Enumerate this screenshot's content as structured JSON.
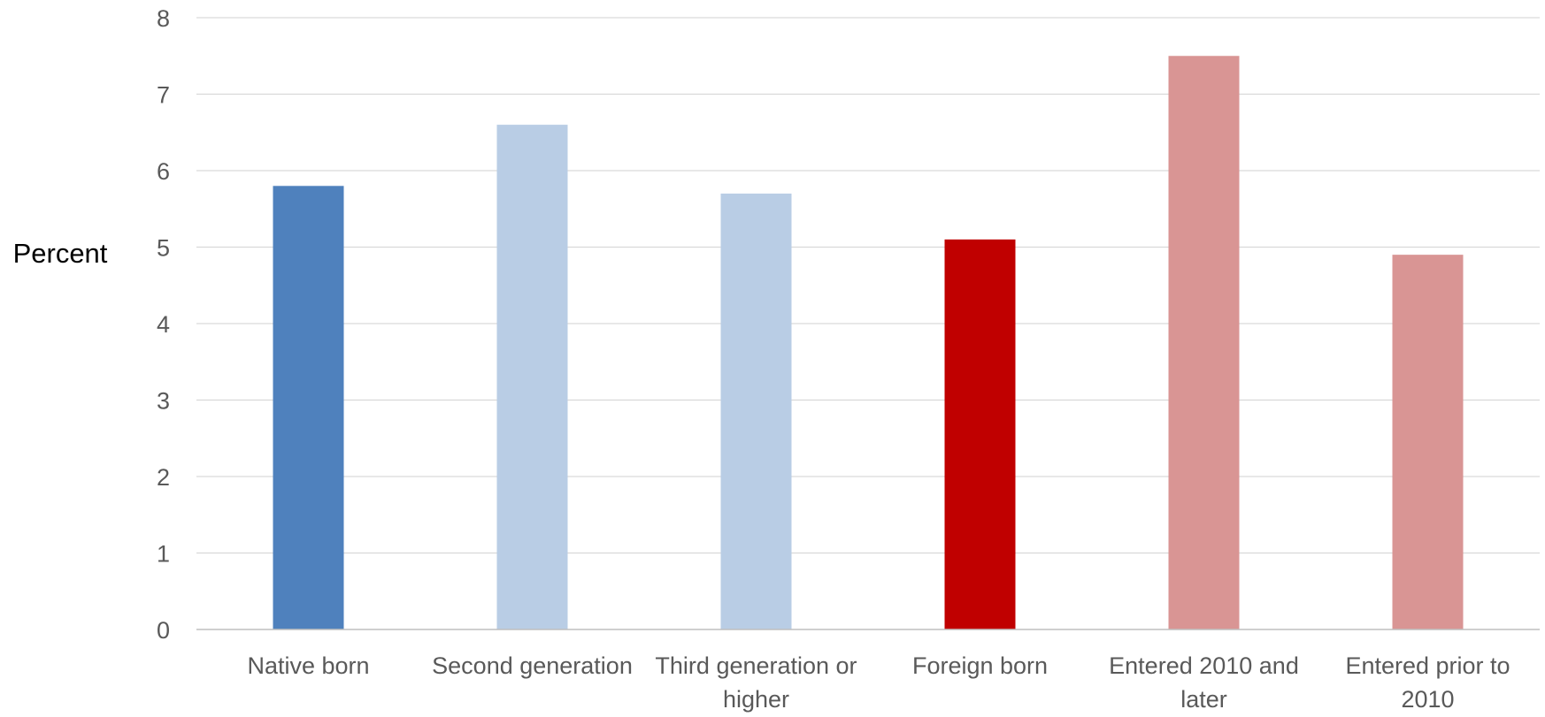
{
  "chart_data": {
    "type": "bar",
    "title": "",
    "xlabel": "",
    "ylabel": "Percent",
    "ylim": [
      0,
      8
    ],
    "yticks": [
      0,
      1,
      2,
      3,
      4,
      5,
      6,
      7,
      8
    ],
    "grid": true,
    "legend": "none",
    "categories": [
      [
        "Native born"
      ],
      [
        "Second generation"
      ],
      [
        "Third generation or",
        "higher"
      ],
      [
        "Foreign born"
      ],
      [
        "Entered 2010 and",
        "later"
      ],
      [
        "Entered prior to",
        "2010"
      ]
    ],
    "values": [
      5.8,
      6.6,
      5.7,
      5.1,
      7.5,
      4.9
    ],
    "colors": [
      "#4f81bd",
      "#b9cde5",
      "#b9cde5",
      "#c00000",
      "#d99594",
      "#d99594"
    ]
  }
}
